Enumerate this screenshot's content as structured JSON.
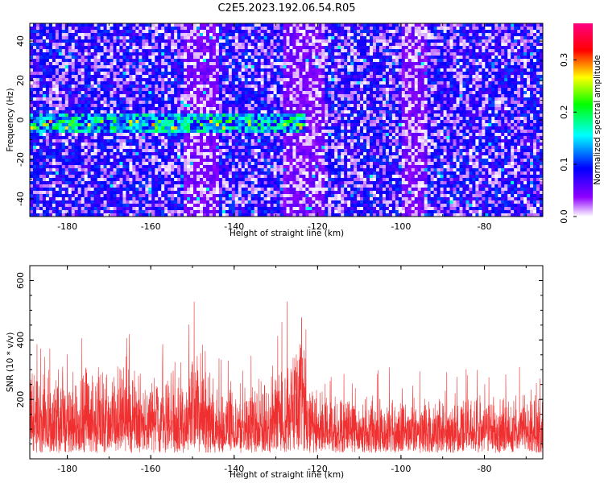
{
  "figure": {
    "title": "C2E5.2023.192.06.54.R05"
  },
  "chart_data": [
    {
      "type": "heatmap",
      "title": "C2E5.2023.192.06.54.R05",
      "xlabel": "Height of straight line (km)",
      "ylabel": "Frequency (Hz)",
      "xlim": [
        -189,
        -66
      ],
      "ylim": [
        -49,
        49
      ],
      "x_ticks": [
        -180,
        -160,
        -140,
        -120,
        -100,
        -80
      ],
      "y_ticks": [
        -40,
        -20,
        0,
        20,
        40
      ],
      "colorbar": {
        "label": "Normalized spectral amplitude",
        "range": [
          0.0,
          0.37
        ],
        "ticks": [
          0.0,
          0.1,
          0.2,
          0.3
        ],
        "colors": [
          "#ffffff",
          "#8f00ff",
          "#0000ff",
          "#00ffff",
          "#00ff00",
          "#ffff00",
          "#ff0000",
          "#ff0080"
        ]
      },
      "description_values": {
        "background_level": 0.04,
        "band_center_hz": -2,
        "band_extent_km": [
          -189,
          -123
        ],
        "band_peak": 0.3,
        "band_peak_location_km": [
          -128,
          -150
        ]
      }
    },
    {
      "type": "line",
      "xlabel": "Height of straight line (km)",
      "ylabel": "SNR (10 * v/v)",
      "xlim": [
        -189,
        -66
      ],
      "ylim": [
        0,
        650
      ],
      "x_ticks": [
        -180,
        -160,
        -140,
        -120,
        -100,
        -80
      ],
      "y_ticks": [
        200,
        400,
        600
      ],
      "color": "#f03030",
      "envelope_samples": {
        "x": [
          -188,
          -180,
          -176,
          -172,
          -168,
          -164,
          -160,
          -156,
          -152,
          -150,
          -148,
          -144,
          -140,
          -136,
          -132,
          -128,
          -126,
          -124,
          -122,
          -120,
          -110,
          -100,
          -90,
          -80,
          -70,
          -66
        ],
        "typical_max": [
          340,
          300,
          330,
          330,
          340,
          320,
          300,
          320,
          300,
          400,
          360,
          280,
          270,
          280,
          300,
          370,
          450,
          580,
          300,
          250,
          230,
          230,
          230,
          230,
          230,
          220
        ],
        "peak": [
          390,
          360,
          520,
          470,
          450,
          420,
          380,
          430,
          390,
          580,
          420,
          350,
          340,
          350,
          380,
          520,
          620,
          650,
          380,
          310,
          300,
          320,
          310,
          300,
          320,
          290
        ]
      }
    }
  ]
}
